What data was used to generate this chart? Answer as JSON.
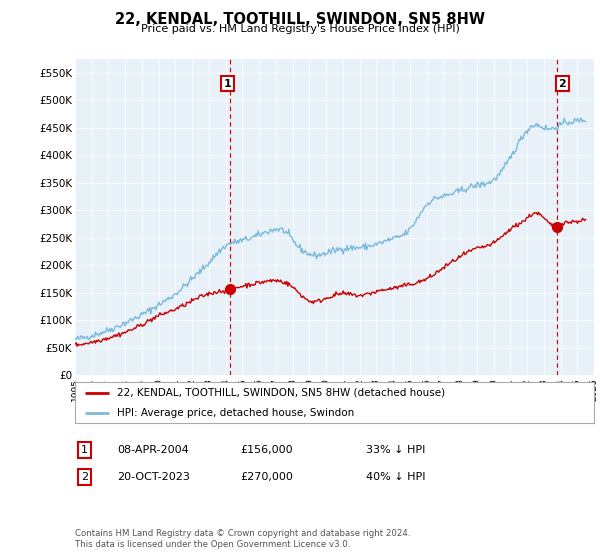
{
  "title": "22, KENDAL, TOOTHILL, SWINDON, SN5 8HW",
  "subtitle": "Price paid vs. HM Land Registry's House Price Index (HPI)",
  "ylim": [
    0,
    575000
  ],
  "yticks": [
    0,
    50000,
    100000,
    150000,
    200000,
    250000,
    300000,
    350000,
    400000,
    450000,
    500000,
    550000
  ],
  "ytick_labels": [
    "£0",
    "£50K",
    "£100K",
    "£150K",
    "£200K",
    "£250K",
    "£300K",
    "£350K",
    "£400K",
    "£450K",
    "£500K",
    "£550K"
  ],
  "hpi_color": "#7abadc",
  "property_color": "#cc0000",
  "annotation_color": "#cc0000",
  "vline_color": "#cc0000",
  "background_color": "#ffffff",
  "plot_bg_color": "#e8f0f8",
  "grid_color": "#ffffff",
  "purchase1_x": 2004.27,
  "purchase1_y": 156000,
  "purchase1_label": "1",
  "purchase2_x": 2023.8,
  "purchase2_y": 270000,
  "purchase2_label": "2",
  "legend_entry1": "22, KENDAL, TOOTHILL, SWINDON, SN5 8HW (detached house)",
  "legend_entry2": "HPI: Average price, detached house, Swindon",
  "table_row1_num": "1",
  "table_row1_date": "08-APR-2004",
  "table_row1_price": "£156,000",
  "table_row1_hpi": "33% ↓ HPI",
  "table_row2_num": "2",
  "table_row2_date": "20-OCT-2023",
  "table_row2_price": "£270,000",
  "table_row2_hpi": "40% ↓ HPI",
  "footer": "Contains HM Land Registry data © Crown copyright and database right 2024.\nThis data is licensed under the Open Government Licence v3.0.",
  "xmin": 1995,
  "xmax": 2026
}
